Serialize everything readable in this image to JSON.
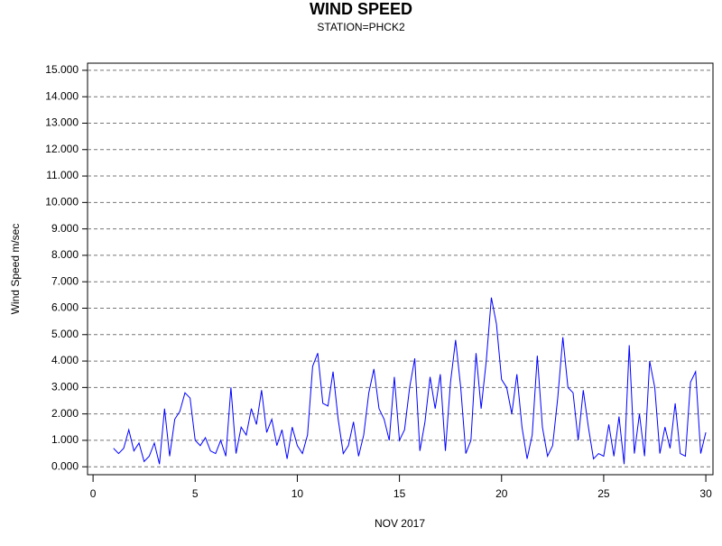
{
  "chart_data": {
    "type": "line",
    "title": "WIND SPEED",
    "subtitle": "STATION=PHCK2",
    "y_label": "Wind Speed m/sec",
    "x_label": "NOV 2017",
    "xlim": [
      -0.27,
      30.35
    ],
    "xticks": [
      0,
      5,
      10,
      15,
      20,
      25,
      30
    ],
    "ylim": [
      -0.3,
      15.27
    ],
    "yticks": [
      {
        "value": 0,
        "label": "0.000"
      },
      {
        "value": 1,
        "label": "1.000"
      },
      {
        "value": 2,
        "label": "2.000"
      },
      {
        "value": 3,
        "label": "3.000"
      },
      {
        "value": 4,
        "label": "4.000"
      },
      {
        "value": 5,
        "label": "5.000"
      },
      {
        "value": 6,
        "label": "6.000"
      },
      {
        "value": 7,
        "label": "7.000"
      },
      {
        "value": 8,
        "label": "8.000"
      },
      {
        "value": 9,
        "label": "9.000"
      },
      {
        "value": 10,
        "label": "10.000"
      },
      {
        "value": 11,
        "label": "11.000"
      },
      {
        "value": 12,
        "label": "12.000"
      },
      {
        "value": 13,
        "label": "13.000"
      },
      {
        "value": 14,
        "label": "14.000"
      },
      {
        "value": 15,
        "label": "15.000"
      }
    ],
    "grid": true,
    "color": "#0000ff",
    "x": [
      1,
      1.25,
      1.5,
      1.75,
      2,
      2.25,
      2.5,
      2.75,
      3,
      3.25,
      3.5,
      3.75,
      4,
      4.25,
      4.5,
      4.75,
      5,
      5.25,
      5.5,
      5.75,
      6,
      6.25,
      6.5,
      6.75,
      7,
      7.25,
      7.5,
      7.75,
      8,
      8.25,
      8.5,
      8.75,
      9,
      9.25,
      9.5,
      9.75,
      10,
      10.25,
      10.5,
      10.75,
      11,
      11.25,
      11.5,
      11.75,
      12,
      12.25,
      12.5,
      12.75,
      13,
      13.25,
      13.5,
      13.75,
      14,
      14.25,
      14.5,
      14.75,
      15,
      15.25,
      15.5,
      15.75,
      16,
      16.25,
      16.5,
      16.75,
      17,
      17.25,
      17.5,
      17.75,
      18,
      18.25,
      18.5,
      18.75,
      19,
      19.25,
      19.5,
      19.75,
      20,
      20.25,
      20.5,
      20.75,
      21,
      21.25,
      21.5,
      21.75,
      22,
      22.25,
      22.5,
      22.75,
      23,
      23.25,
      23.5,
      23.75,
      24,
      24.25,
      24.5,
      24.75,
      25,
      25.25,
      25.5,
      25.75,
      26,
      26.25,
      26.5,
      26.75,
      27,
      27.25,
      27.5,
      27.75,
      28,
      28.25,
      28.5,
      28.75,
      29,
      29.25,
      29.5,
      29.75,
      30
    ],
    "values": [
      0.7,
      0.5,
      0.7,
      1.4,
      0.6,
      0.9,
      0.2,
      0.4,
      0.9,
      0.1,
      2.2,
      0.4,
      1.8,
      2.1,
      2.8,
      2.6,
      1.0,
      0.8,
      1.1,
      0.6,
      0.5,
      1.0,
      0.4,
      3.0,
      0.5,
      1.5,
      1.2,
      2.2,
      1.6,
      2.9,
      1.3,
      1.8,
      0.8,
      1.4,
      0.3,
      1.5,
      0.8,
      0.5,
      1.2,
      3.8,
      4.3,
      2.4,
      2.3,
      3.6,
      1.8,
      0.5,
      0.8,
      1.7,
      0.4,
      1.2,
      2.8,
      3.7,
      2.2,
      1.8,
      1.0,
      3.4,
      1.0,
      1.4,
      3.0,
      4.1,
      0.6,
      1.7,
      3.4,
      2.2,
      3.5,
      0.6,
      3.2,
      4.8,
      3.0,
      0.5,
      1.0,
      4.3,
      2.2,
      4.0,
      6.4,
      5.4,
      3.3,
      3.0,
      2.0,
      3.5,
      1.5,
      0.3,
      1.2,
      4.2,
      1.5,
      0.4,
      0.8,
      2.6,
      4.9,
      3.0,
      2.8,
      1.0,
      2.9,
      1.5,
      0.3,
      0.5,
      0.4,
      1.6,
      0.4,
      1.9,
      0.1,
      4.6,
      0.5,
      2.0,
      0.4,
      4.0,
      3.0,
      0.5,
      1.5,
      0.7,
      2.4,
      0.5,
      0.4,
      3.2,
      3.6,
      0.5,
      1.3
    ]
  }
}
